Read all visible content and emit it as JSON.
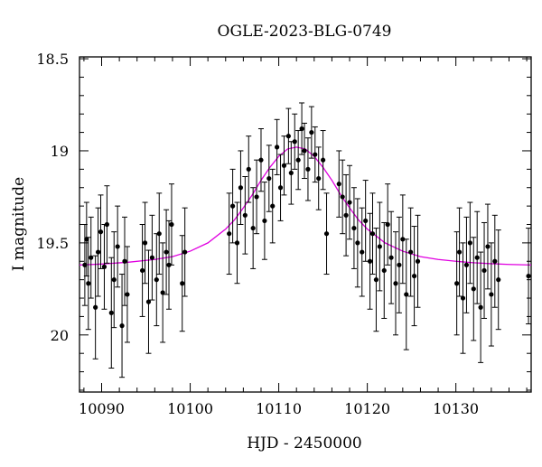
{
  "chart_data": {
    "type": "scatter",
    "title": "OGLE-2023-BLG-0749",
    "xlabel": "HJD - 2450000",
    "ylabel": "I magnitude",
    "xlim": [
      10087.5,
      10138.5
    ],
    "ylim": [
      20.31,
      18.49
    ],
    "y_inverted": true,
    "x_ticks": [
      10090,
      10100,
      10110,
      10120,
      10130
    ],
    "x_tick_labels": [
      "10090",
      "10100",
      "10110",
      "10120",
      "10130"
    ],
    "y_ticks": [
      18.5,
      19,
      19.5,
      20
    ],
    "y_tick_labels": [
      "18.5",
      "19",
      "19.5",
      "20"
    ],
    "grid": false,
    "legend": "none",
    "colors": {
      "points": "#000000",
      "model": "#e000e0"
    },
    "series": [
      {
        "kind": "points_with_errorbars",
        "x": [
          10088.1,
          10088.3,
          10088.5,
          10088.8,
          10089.3,
          10089.6,
          10089.9,
          10090.3,
          10090.6,
          10091.1,
          10091.4,
          10091.8,
          10092.3,
          10092.6,
          10092.9,
          10094.6,
          10094.9,
          10095.3,
          10095.7,
          10096.2,
          10096.5,
          10096.9,
          10097.3,
          10097.6,
          10097.9,
          10099.1,
          10099.4,
          10104.4,
          10104.8,
          10105.3,
          10105.7,
          10106.2,
          10106.6,
          10107.1,
          10107.5,
          10108.0,
          10108.4,
          10108.9,
          10109.3,
          10109.8,
          10110.2,
          10110.6,
          10111.1,
          10111.4,
          10111.8,
          10112.2,
          10112.6,
          10112.9,
          10113.3,
          10113.7,
          10114.1,
          10114.5,
          10115.0,
          10115.4,
          10116.8,
          10117.2,
          10117.6,
          10118.0,
          10118.5,
          10118.9,
          10119.4,
          10119.8,
          10120.3,
          10120.6,
          10121.0,
          10121.4,
          10121.9,
          10122.3,
          10122.7,
          10123.2,
          10123.6,
          10124.0,
          10124.4,
          10124.9,
          10125.3,
          10125.7,
          10130.1,
          10130.4,
          10130.8,
          10131.2,
          10131.6,
          10132.0,
          10132.4,
          10132.8,
          10133.2,
          10133.6,
          10134.0,
          10134.4,
          10134.8,
          10138.2
        ],
        "y": [
          19.62,
          19.48,
          19.72,
          19.58,
          19.85,
          19.55,
          19.44,
          19.63,
          19.4,
          19.88,
          19.7,
          19.52,
          19.95,
          19.6,
          19.78,
          19.65,
          19.5,
          19.82,
          19.58,
          19.7,
          19.45,
          19.77,
          19.55,
          19.62,
          19.4,
          19.72,
          19.55,
          19.45,
          19.3,
          19.5,
          19.2,
          19.35,
          19.1,
          19.42,
          19.25,
          19.05,
          19.38,
          19.15,
          19.3,
          18.98,
          19.2,
          19.08,
          18.92,
          19.12,
          18.95,
          19.05,
          18.88,
          19.0,
          19.1,
          18.9,
          19.02,
          19.15,
          19.05,
          19.45,
          19.18,
          19.25,
          19.35,
          19.28,
          19.42,
          19.5,
          19.55,
          19.38,
          19.6,
          19.45,
          19.7,
          19.52,
          19.65,
          19.4,
          19.58,
          19.72,
          19.62,
          19.48,
          19.78,
          19.55,
          19.68,
          19.6,
          19.72,
          19.55,
          19.8,
          19.62,
          19.5,
          19.75,
          19.58,
          19.85,
          19.65,
          19.52,
          19.78,
          19.6,
          19.7,
          19.68
        ],
        "yerr": [
          0.22,
          0.2,
          0.25,
          0.22,
          0.28,
          0.24,
          0.2,
          0.23,
          0.21,
          0.3,
          0.26,
          0.22,
          0.28,
          0.24,
          0.26,
          0.25,
          0.22,
          0.28,
          0.23,
          0.25,
          0.22,
          0.27,
          0.23,
          0.24,
          0.22,
          0.26,
          0.24,
          0.22,
          0.2,
          0.22,
          0.2,
          0.21,
          0.18,
          0.22,
          0.2,
          0.17,
          0.21,
          0.18,
          0.2,
          0.15,
          0.18,
          0.16,
          0.15,
          0.17,
          0.15,
          0.16,
          0.14,
          0.15,
          0.17,
          0.14,
          0.15,
          0.17,
          0.16,
          0.22,
          0.18,
          0.2,
          0.22,
          0.2,
          0.22,
          0.24,
          0.24,
          0.22,
          0.26,
          0.22,
          0.28,
          0.24,
          0.26,
          0.22,
          0.25,
          0.28,
          0.26,
          0.24,
          0.3,
          0.24,
          0.27,
          0.25,
          0.28,
          0.24,
          0.3,
          0.26,
          0.22,
          0.28,
          0.25,
          0.3,
          0.26,
          0.23,
          0.28,
          0.25,
          0.27,
          0.26
        ]
      },
      {
        "kind": "model_curve",
        "x": [
          10087.5,
          10090,
          10093,
          10096,
          10098,
          10100,
          10102,
          10104,
          10105,
          10106,
          10107,
          10108,
          10109,
          10110,
          10111,
          10112,
          10113,
          10114,
          10115,
          10116,
          10117,
          10118,
          10119,
          10120,
          10122,
          10124,
          10126,
          10128,
          10130,
          10132,
          10134,
          10136,
          10138.5
        ],
        "y": [
          19.62,
          19.615,
          19.605,
          19.59,
          19.575,
          19.545,
          19.5,
          19.425,
          19.375,
          19.31,
          19.24,
          19.16,
          19.09,
          19.03,
          18.99,
          18.98,
          18.99,
          19.03,
          19.09,
          19.16,
          19.24,
          19.31,
          19.375,
          19.425,
          19.5,
          19.545,
          19.575,
          19.59,
          19.6,
          19.608,
          19.613,
          19.617,
          19.62
        ]
      }
    ]
  }
}
